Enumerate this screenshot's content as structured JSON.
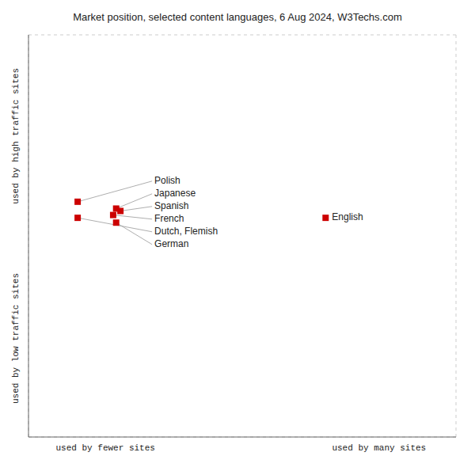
{
  "chart_data": {
    "type": "scatter",
    "title": "Market position, selected content languages, 6 Aug 2024, W3Techs.com",
    "xlabel_left": "used by fewer sites",
    "xlabel_right": "used by many sites",
    "ylabel_top": "used by high traffic sites",
    "ylabel_bottom": "used by low traffic sites",
    "labels": [
      "Polish",
      "Dutch, Flemish",
      "Japanese",
      "Spanish",
      "French",
      "German",
      "English"
    ],
    "x": [
      0.115,
      0.115,
      0.205,
      0.215,
      0.198,
      0.205,
      0.695
    ],
    "values": [
      0.585,
      0.545,
      0.568,
      0.562,
      0.552,
      0.533,
      0.545
    ],
    "color": "#cc0000",
    "marker": "square",
    "xlim": [
      0,
      1
    ],
    "ylim": [
      0,
      1
    ],
    "xticks": [
      0,
      0.16666666666666666,
      0.3333333333333333,
      0.5,
      0.6666666666666666,
      0.8333333333333334,
      1
    ],
    "yticks": [
      0,
      0.16666666666666666,
      0.3333333333333333,
      0.5,
      0.6666666666666666,
      0.8333333333333334,
      1
    ],
    "grid": true,
    "tick_labels": false
  }
}
